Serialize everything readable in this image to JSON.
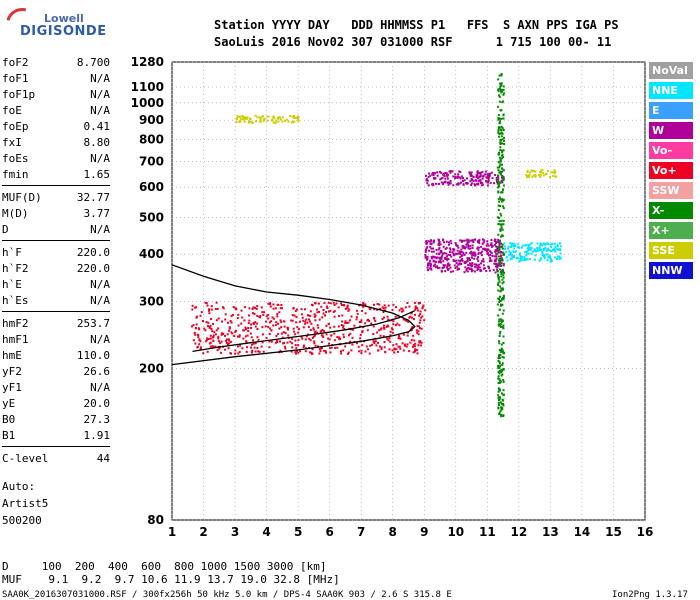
{
  "logo": {
    "line1": "Lowell",
    "line2": "DIGISONDE"
  },
  "header": {
    "row1": "Station YYYY DAY   DDD HHMMSS P1   FFS  S AXN PPS IGA PS",
    "row2": "SaoLuis 2016 Nov02 307 031000 RSF      1 715 100 00- 11"
  },
  "params": [
    {
      "name": "foF2",
      "value": "8.700"
    },
    {
      "name": "foF1",
      "value": "N/A"
    },
    {
      "name": "foF1p",
      "value": "N/A"
    },
    {
      "name": "foE",
      "value": "N/A"
    },
    {
      "name": "foEp",
      "value": "0.41"
    },
    {
      "name": "fxI",
      "value": "8.80"
    },
    {
      "name": "foEs",
      "value": "N/A"
    },
    {
      "name": "fmin",
      "value": "1.65"
    },
    {
      "name": "MUF(D)",
      "value": "32.77"
    },
    {
      "name": "M(D)",
      "value": "3.77"
    },
    {
      "name": "D",
      "value": "N/A"
    },
    {
      "name": "h`F",
      "value": "220.0"
    },
    {
      "name": "h`F2",
      "value": "220.0"
    },
    {
      "name": "h`E",
      "value": "N/A"
    },
    {
      "name": "h`Es",
      "value": "N/A"
    },
    {
      "name": "hmF2",
      "value": "253.7"
    },
    {
      "name": "hmF1",
      "value": "N/A"
    },
    {
      "name": "hmE",
      "value": "110.0"
    },
    {
      "name": "yF2",
      "value": "26.6"
    },
    {
      "name": "yF1",
      "value": "N/A"
    },
    {
      "name": "yE",
      "value": "20.0"
    },
    {
      "name": "B0",
      "value": "27.3"
    },
    {
      "name": "B1",
      "value": "1.91"
    },
    {
      "name": "C-level",
      "value": "44"
    }
  ],
  "auto": {
    "line1": "Auto:",
    "line2": "Artist5",
    "line3": "500200"
  },
  "legend": [
    {
      "label": "NoVal",
      "color": "#a0a0a0"
    },
    {
      "label": "NNE",
      "color": "#00e6ff"
    },
    {
      "label": "E",
      "color": "#3aa0ff"
    },
    {
      "label": "W",
      "color": "#b0009a"
    },
    {
      "label": "Vo-",
      "color": "#ff3aa0"
    },
    {
      "label": "Vo+",
      "color": "#ee0022"
    },
    {
      "label": "SSW",
      "color": "#f2a0a0"
    },
    {
      "label": "X-",
      "color": "#008a00"
    },
    {
      "label": "X+",
      "color": "#4cae4c"
    },
    {
      "label": "SSE",
      "color": "#cccc00"
    },
    {
      "label": "NNW",
      "color": "#1010d0"
    }
  ],
  "footer": {
    "dist": "D     100  200  400  600  800 1000 1500 3000 [km]",
    "muf": "MUF    9.1  9.2  9.7 10.6 11.9 13.7 19.0 32.8 [MHz]",
    "info": "SAA0K_2016307031000.RSF / 300fx256h 50 kHz 5.0 km / DPS-4 SAA0K 903 / 2.6 S 315.8 E",
    "version": "Ion2Png 1.3.17"
  },
  "chart_data": {
    "type": "scatter",
    "title": "",
    "xlabel": "",
    "ylabel": "",
    "xlim": [
      1,
      16
    ],
    "ylim": [
      80,
      1280
    ],
    "y_scale": "log",
    "x_ticks": [
      1,
      2,
      3,
      4,
      5,
      6,
      7,
      8,
      9,
      10,
      11,
      12,
      13,
      14,
      15,
      16
    ],
    "y_ticks": [
      80,
      200,
      300,
      400,
      500,
      600,
      700,
      800,
      900,
      1000,
      1100,
      1280
    ],
    "grid": true,
    "legend_position": "right",
    "traces": [
      {
        "name": "trace",
        "points": [
          [
            1.65,
            222
          ],
          [
            2.5,
            228
          ],
          [
            3.5,
            234
          ],
          [
            4.5,
            240
          ],
          [
            5.5,
            246
          ],
          [
            6.5,
            253
          ],
          [
            7.5,
            262
          ],
          [
            8.2,
            272
          ],
          [
            8.7,
            284
          ]
        ]
      },
      {
        "name": "profile",
        "points": [
          [
            1.0,
            205
          ],
          [
            3.0,
            215
          ],
          [
            5.0,
            224
          ],
          [
            7.0,
            236
          ],
          [
            8.0,
            244
          ],
          [
            8.5,
            250
          ],
          [
            8.7,
            258
          ],
          [
            8.5,
            268
          ],
          [
            8.0,
            280
          ],
          [
            7.0,
            294
          ],
          [
            6.0,
            304
          ],
          [
            5.0,
            312
          ],
          [
            4.0,
            318
          ],
          [
            3.0,
            330
          ],
          [
            2.0,
            350
          ],
          [
            1.0,
            375
          ]
        ]
      }
    ],
    "echo_regions": [
      {
        "color": "W",
        "x": [
          9.0,
          11.5
        ],
        "y": [
          610,
          665
        ]
      },
      {
        "color": "W",
        "x": [
          9.0,
          11.5
        ],
        "y": [
          360,
          440
        ]
      },
      {
        "color": "NNE",
        "x": [
          11.5,
          13.3
        ],
        "y": [
          385,
          430
        ]
      },
      {
        "color": "Vo+",
        "x": [
          1.6,
          9.0
        ],
        "y": [
          220,
          300
        ]
      },
      {
        "color": "SSE",
        "x": [
          12.2,
          13.2
        ],
        "y": [
          640,
          670
        ]
      },
      {
        "color": "X-",
        "x": [
          11.3,
          11.5
        ],
        "y": [
          150,
          1200
        ]
      },
      {
        "color": "SSE",
        "x": [
          3.0,
          5.0
        ],
        "y": [
          890,
          930
        ]
      }
    ]
  }
}
